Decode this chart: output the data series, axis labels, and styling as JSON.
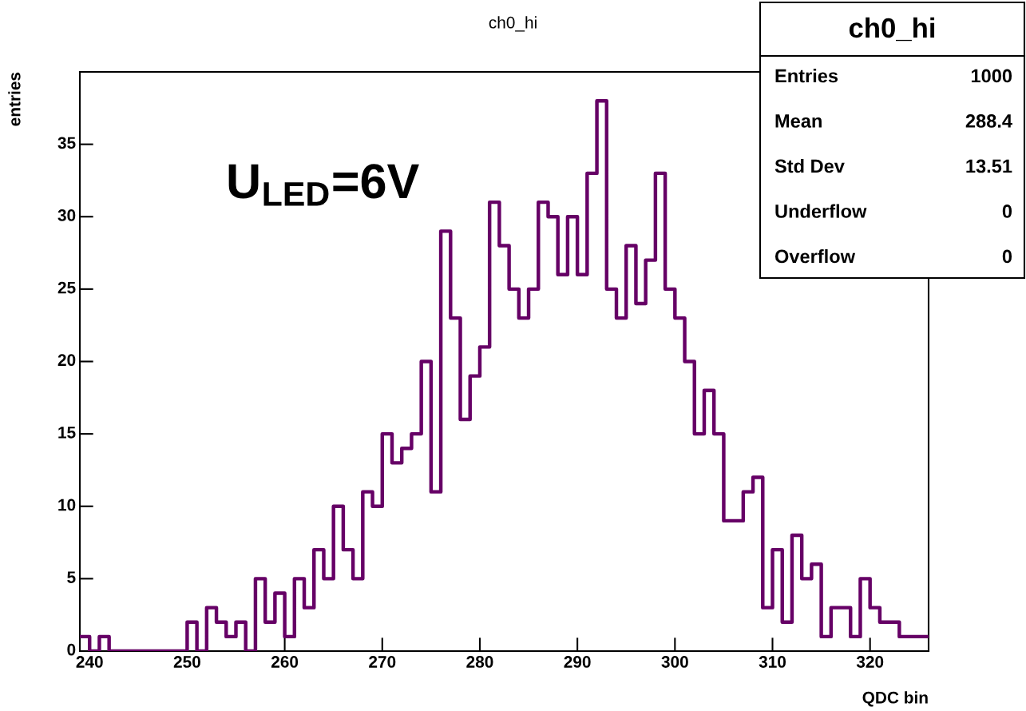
{
  "chart_data": {
    "type": "histogram",
    "title": "ch0_hi",
    "xlabel": "QDC bin",
    "ylabel": "entries",
    "bins": [
      239,
      240,
      241,
      242,
      243,
      244,
      245,
      246,
      247,
      248,
      249,
      250,
      251,
      252,
      253,
      254,
      255,
      256,
      257,
      258,
      259,
      260,
      261,
      262,
      263,
      264,
      265,
      266,
      267,
      268,
      269,
      270,
      271,
      272,
      273,
      274,
      275,
      276,
      277,
      278,
      279,
      280,
      281,
      282,
      283,
      284,
      285,
      286,
      287,
      288,
      289,
      290,
      291,
      292,
      293,
      294,
      295,
      296,
      297,
      298,
      299,
      300,
      301,
      302,
      303,
      304,
      305,
      306,
      307,
      308,
      309,
      310,
      311,
      312,
      313,
      314,
      315,
      316,
      317,
      318,
      319,
      320,
      321,
      322,
      323,
      324,
      325,
      326
    ],
    "values": [
      1,
      0,
      1,
      0,
      0,
      0,
      0,
      0,
      0,
      0,
      0,
      2,
      0,
      3,
      2,
      1,
      2,
      0,
      5,
      2,
      4,
      1,
      5,
      3,
      7,
      5,
      10,
      7,
      5,
      11,
      10,
      15,
      13,
      14,
      15,
      20,
      11,
      29,
      23,
      16,
      19,
      21,
      31,
      28,
      25,
      23,
      25,
      31,
      30,
      26,
      30,
      26,
      33,
      38,
      25,
      23,
      28,
      24,
      27,
      33,
      25,
      23,
      20,
      15,
      18,
      15,
      9,
      9,
      11,
      12,
      3,
      7,
      2,
      8,
      5,
      6,
      1,
      3,
      3,
      1,
      5,
      3,
      2,
      2,
      1,
      1,
      1
    ],
    "color": "#660066",
    "xlim": [
      239,
      326
    ],
    "ylim": [
      0,
      40
    ],
    "xticks": [
      240,
      250,
      260,
      270,
      280,
      290,
      300,
      310,
      320
    ],
    "yticks": [
      0,
      5,
      10,
      15,
      20,
      25,
      30,
      35
    ],
    "grid": false,
    "legend": false,
    "annotations": [
      "U$_{LED}$=6V",
      "ch0_hi",
      "Entries",
      "1000",
      "Mean",
      "288.4",
      "Std Dev",
      "13.51",
      "Underflow",
      "0",
      "Overflow",
      "0"
    ]
  }
}
